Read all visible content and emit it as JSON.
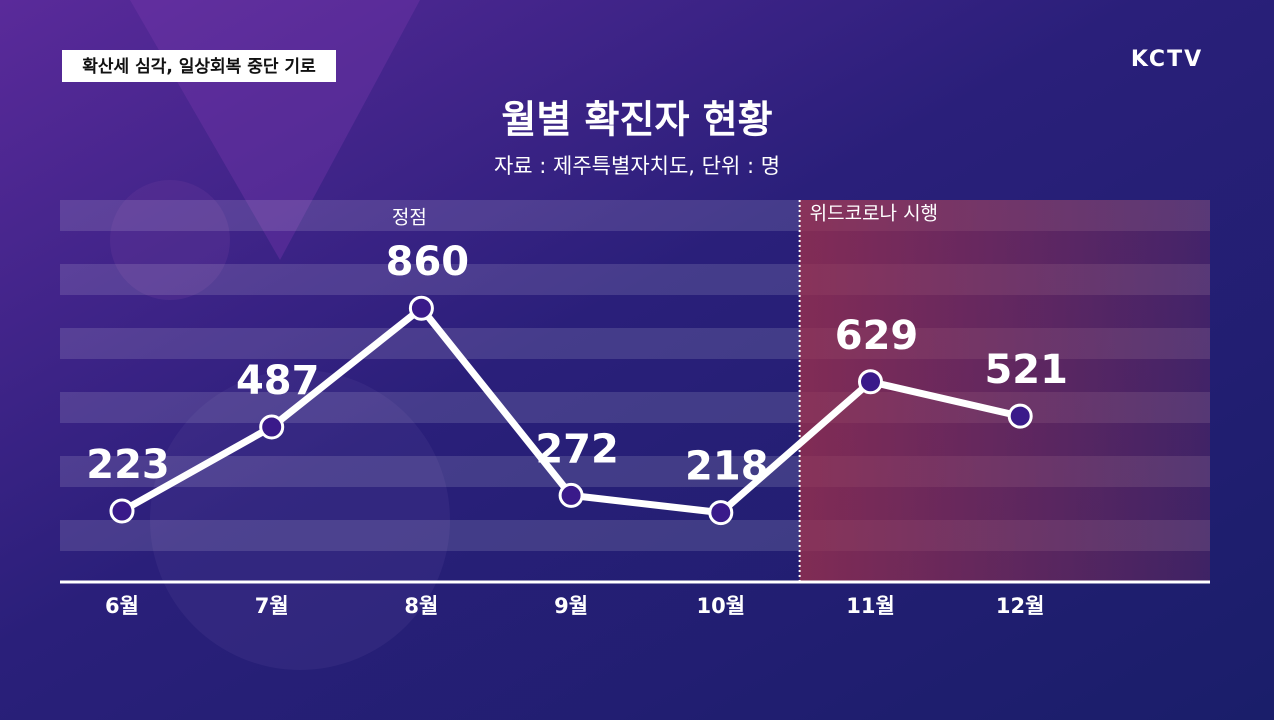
{
  "banner": "확산세 심각, 일상회복 중단 기로",
  "logo": "KCTV",
  "chart_data": {
    "type": "line",
    "title": "월별 확진자 현황",
    "subtitle": "자료 : 제주특별자치도, 단위 : 명",
    "categories": [
      "6월",
      "7월",
      "8월",
      "9월",
      "10월",
      "11월",
      "12월"
    ],
    "values": [
      223,
      487,
      860,
      272,
      218,
      629,
      521
    ],
    "ylim": [
      0,
      1200
    ],
    "color": "#ffffff",
    "marker_color": "#3a1a8a",
    "annotations": [
      "정점",
      "위드코로나 시행"
    ]
  }
}
